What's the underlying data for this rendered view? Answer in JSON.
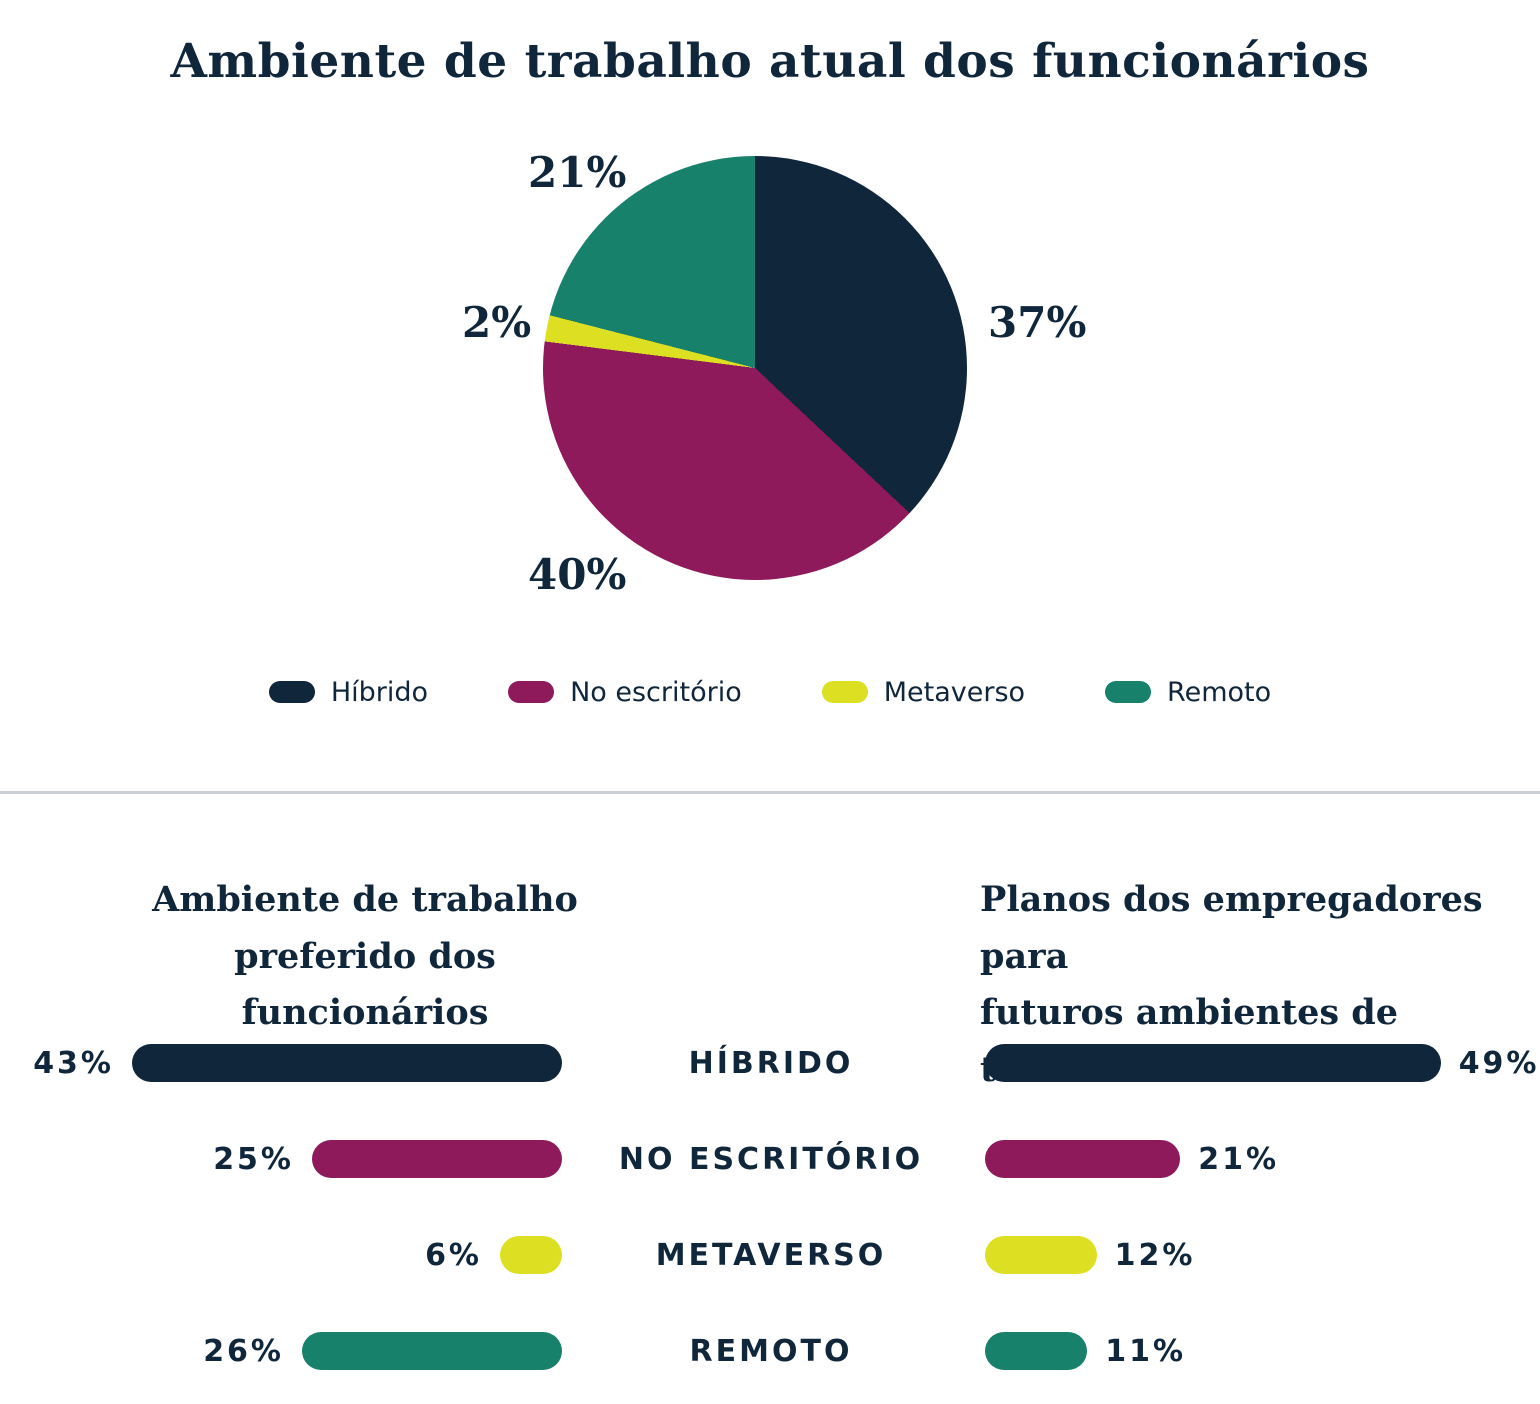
{
  "colors": {
    "background": "#FFFFFF",
    "text": "#10263B",
    "divider": "#C9CFD3",
    "palette": [
      "#10263B",
      "#8E195B",
      "#DDE022",
      "#17816C"
    ]
  },
  "chart_data": [
    {
      "type": "pie",
      "title": "Ambiente de trabalho atual dos funcionários",
      "categories": [
        "Híbrido",
        "No escritório",
        "Metaverso",
        "Remoto"
      ],
      "values": [
        37,
        40,
        2,
        21
      ],
      "labels": [
        "37%",
        "40%",
        "2%",
        "21%"
      ],
      "colors": [
        "#10263B",
        "#8E195B",
        "#DDE022",
        "#17816C"
      ],
      "start_angle": "12-oclock",
      "direction": "clockwise",
      "legend_position": "bottom"
    },
    {
      "type": "bar",
      "orientation": "horizontal",
      "bar_alignment": "right",
      "title": "Ambiente de trabalho preferido dos funcionários",
      "title_lines": [
        "Ambiente de trabalho",
        "preferido dos funcionários"
      ],
      "categories": [
        "HÍBRIDO",
        "NO ESCRITÓRIO",
        "METAVERSO",
        "REMOTO"
      ],
      "values": [
        43,
        25,
        6,
        26
      ],
      "labels": [
        "43%",
        "25%",
        "6%",
        "26%"
      ],
      "colors": [
        "#10263B",
        "#8E195B",
        "#DDE022",
        "#17816C"
      ],
      "xlim": [
        0,
        50
      ]
    },
    {
      "type": "bar",
      "orientation": "horizontal",
      "bar_alignment": "left",
      "title": "Planos dos empregadores para futuros ambientes de trabalho",
      "title_lines": [
        "Planos dos empregadores para",
        "futuros ambientes de trabalho"
      ],
      "categories": [
        "HÍBRIDO",
        "NO ESCRITÓRIO",
        "METAVERSO",
        "REMOTO"
      ],
      "values": [
        49,
        21,
        12,
        11
      ],
      "labels": [
        "49%",
        "21%",
        "12%",
        "11%"
      ],
      "colors": [
        "#10263B",
        "#8E195B",
        "#DDE022",
        "#17816C"
      ],
      "xlim": [
        0,
        50
      ]
    }
  ]
}
